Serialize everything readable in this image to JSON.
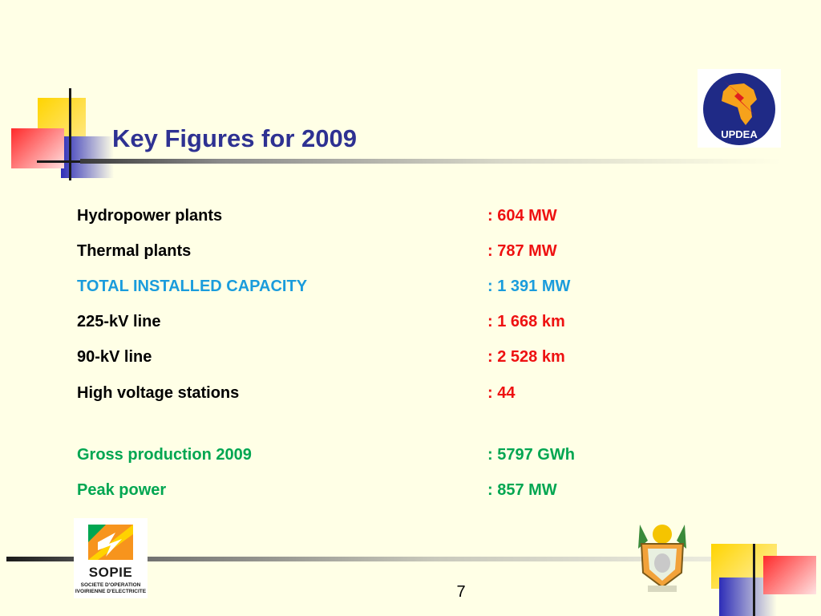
{
  "slide": {
    "title": "Key Figures for 2009",
    "page_number": "7"
  },
  "figures": [
    {
      "label": "Hydropower plants",
      "value": ": 604 MW",
      "color": "#ee1111"
    },
    {
      "label": "Thermal plants",
      "value": ": 787 MW",
      "color": "#ee1111"
    },
    {
      "label": "TOTAL INSTALLED CAPACITY",
      "value": ": 1 391 MW",
      "color": "#1a9cdc"
    },
    {
      "label": "225-kV line",
      "value": ": 1 668 km",
      "color": "#ee1111"
    },
    {
      "label": "90-kV line",
      "value": ": 2 528 km",
      "color": "#ee1111"
    },
    {
      "label": "High voltage stations",
      "value": ": 44",
      "color": "#ee1111"
    },
    {
      "label": "Gross production 2009",
      "value": ": 5797 GWh",
      "color": "#00a651"
    },
    {
      "label": "Peak power",
      "value": ": 857 MW",
      "color": "#00a651"
    }
  ],
  "logos": {
    "updea": {
      "text": "UPDEA",
      "icon": "updea-logo-icon"
    },
    "sopie": {
      "name": "SOPIE",
      "subtitle_line1": "SOCIETE D'OPERATION",
      "subtitle_line2": "IVOIRIENNE D'ELECTRICITE",
      "icon": "sopie-logo-icon"
    },
    "emblem": {
      "icon": "cote-divoire-coat-of-arms-icon"
    }
  },
  "colors": {
    "title": "#2e3192",
    "background": "#ffffe6"
  }
}
